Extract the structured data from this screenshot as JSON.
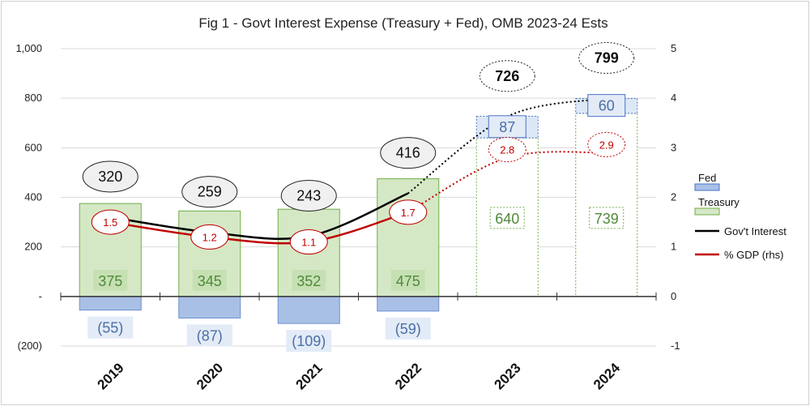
{
  "chart_data": {
    "type": "bar",
    "title": "Fig 1 - Govt Interest Expense (Treasury + Fed), OMB 2023-24 Ests",
    "categories": [
      "2019",
      "2020",
      "2021",
      "2022",
      "2023",
      "2024"
    ],
    "estimate_categories": [
      "2023",
      "2024"
    ],
    "series": [
      {
        "name": "Fed",
        "type": "bar",
        "values": [
          -55,
          -87,
          -109,
          -59,
          87,
          60
        ],
        "labels": [
          "(55)",
          "(87)",
          "(109)",
          "(59)",
          "87",
          "60"
        ],
        "color": "#4a72c4"
      },
      {
        "name": "Treasury",
        "type": "bar",
        "values": [
          375,
          345,
          352,
          475,
          640,
          739
        ],
        "labels": [
          "375",
          "345",
          "352",
          "475",
          "640",
          "739"
        ],
        "color": "#70ad47"
      },
      {
        "name": "Gov't Interest",
        "type": "line",
        "values": [
          320,
          259,
          243,
          416,
          726,
          799
        ],
        "labels": [
          "320",
          "259",
          "243",
          "416",
          "726",
          "799"
        ],
        "color": "#000000"
      },
      {
        "name": "% GDP (rhs)",
        "type": "line",
        "axis": "right",
        "values": [
          1.5,
          1.2,
          1.1,
          1.7,
          2.8,
          2.9
        ],
        "labels": [
          "1.5",
          "1.2",
          "1.1",
          "1.7",
          "2.8",
          "2.9"
        ],
        "color": "#c00000"
      }
    ],
    "y_left": {
      "min": -200,
      "max": 1000,
      "step": 200,
      "tick_labels": [
        "(200)",
        "-",
        "200",
        "400",
        "600",
        "800",
        "1,000"
      ]
    },
    "y_right": {
      "min": -1,
      "max": 5,
      "step": 1,
      "tick_labels": [
        "-1",
        "0",
        "1",
        "2",
        "3",
        "4",
        "5"
      ]
    },
    "legend": {
      "position": "right",
      "entries": [
        "Fed",
        "Treasury",
        "Gov't Interest",
        "% GDP (rhs)"
      ]
    },
    "grid": "horizontal"
  }
}
